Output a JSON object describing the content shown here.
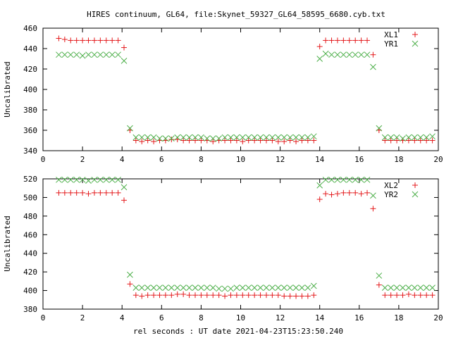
{
  "title": "HIRES continuum, GL64, file:Skynet_59327_GL64_58595_6680.cyb.txt",
  "xlabel": "rel seconds : UT date 2021-04-23T15:23:50.240",
  "colors": {
    "plus": "#e41a1c",
    "cross": "#4daf4a"
  },
  "chart_data": [
    {
      "type": "scatter",
      "ylabel": "Uncalibrated",
      "xlim": [
        0,
        20
      ],
      "ylim": [
        340,
        460
      ],
      "xticks": [
        0,
        2,
        4,
        6,
        8,
        10,
        12,
        14,
        16,
        18,
        20
      ],
      "yticks": [
        340,
        360,
        380,
        400,
        420,
        440,
        460
      ],
      "legend_position": "top-right",
      "series": [
        {
          "name": "XL1",
          "marker": "plus",
          "x": [
            0.8,
            1.1,
            1.4,
            1.7,
            2.0,
            2.3,
            2.6,
            2.9,
            3.2,
            3.5,
            3.8,
            4.1,
            4.4,
            4.7,
            5.0,
            5.3,
            5.6,
            5.9,
            6.2,
            6.5,
            6.8,
            7.1,
            7.4,
            7.7,
            8.0,
            8.3,
            8.6,
            8.9,
            9.2,
            9.5,
            9.8,
            10.1,
            10.4,
            10.7,
            11.0,
            11.3,
            11.6,
            11.9,
            12.2,
            12.5,
            12.8,
            13.1,
            13.4,
            13.7,
            14.0,
            14.3,
            14.6,
            14.9,
            15.2,
            15.5,
            15.8,
            16.1,
            16.4,
            16.7,
            17.0,
            17.3,
            17.6,
            17.9,
            18.2,
            18.5,
            18.8,
            19.1,
            19.4,
            19.7
          ],
          "y": [
            450,
            449,
            448,
            448,
            448,
            448,
            448,
            448,
            448,
            448,
            448,
            441,
            360,
            350,
            349,
            350,
            349,
            350,
            350,
            351,
            351,
            350,
            350,
            350,
            350,
            350,
            349,
            350,
            350,
            350,
            350,
            349,
            350,
            350,
            350,
            350,
            350,
            349,
            349,
            350,
            349,
            350,
            350,
            350,
            442,
            448,
            448,
            448,
            448,
            448,
            448,
            448,
            448,
            434,
            360,
            350,
            350,
            350,
            350,
            350,
            350,
            350,
            350,
            350
          ]
        },
        {
          "name": "YR1",
          "marker": "cross",
          "x": [
            0.8,
            1.1,
            1.4,
            1.7,
            2.0,
            2.3,
            2.6,
            2.9,
            3.2,
            3.5,
            3.8,
            4.1,
            4.4,
            4.7,
            5.0,
            5.3,
            5.6,
            5.9,
            6.2,
            6.5,
            6.8,
            7.1,
            7.4,
            7.7,
            8.0,
            8.3,
            8.6,
            8.9,
            9.2,
            9.5,
            9.8,
            10.1,
            10.4,
            10.7,
            11.0,
            11.3,
            11.6,
            11.9,
            12.2,
            12.5,
            12.8,
            13.1,
            13.4,
            13.7,
            14.0,
            14.3,
            14.6,
            14.9,
            15.2,
            15.5,
            15.8,
            16.1,
            16.4,
            16.7,
            17.0,
            17.3,
            17.6,
            17.9,
            18.2,
            18.5,
            18.8,
            19.1,
            19.4,
            19.7
          ],
          "y": [
            434,
            434,
            434,
            434,
            433,
            434,
            434,
            434,
            434,
            434,
            434,
            428,
            362,
            353,
            353,
            353,
            353,
            352,
            352,
            352,
            353,
            353,
            353,
            353,
            353,
            352,
            352,
            352,
            353,
            353,
            353,
            353,
            353,
            353,
            353,
            353,
            353,
            353,
            353,
            353,
            353,
            353,
            353,
            354,
            430,
            435,
            434,
            434,
            434,
            434,
            434,
            434,
            434,
            422,
            362,
            353,
            353,
            353,
            352,
            353,
            353,
            353,
            353,
            354
          ]
        }
      ]
    },
    {
      "type": "scatter",
      "ylabel": "Uncalibrated",
      "xlim": [
        0,
        20
      ],
      "ylim": [
        380,
        520
      ],
      "xticks": [
        0,
        2,
        4,
        6,
        8,
        10,
        12,
        14,
        16,
        18,
        20
      ],
      "yticks": [
        380,
        400,
        420,
        440,
        460,
        480,
        500,
        520
      ],
      "legend_position": "top-right",
      "series": [
        {
          "name": "XL2",
          "marker": "plus",
          "x": [
            0.8,
            1.1,
            1.4,
            1.7,
            2.0,
            2.3,
            2.6,
            2.9,
            3.2,
            3.5,
            3.8,
            4.1,
            4.4,
            4.7,
            5.0,
            5.3,
            5.6,
            5.9,
            6.2,
            6.5,
            6.8,
            7.1,
            7.4,
            7.7,
            8.0,
            8.3,
            8.6,
            8.9,
            9.2,
            9.5,
            9.8,
            10.1,
            10.4,
            10.7,
            11.0,
            11.3,
            11.6,
            11.9,
            12.2,
            12.5,
            12.8,
            13.1,
            13.4,
            13.7,
            14.0,
            14.3,
            14.6,
            14.9,
            15.2,
            15.5,
            15.8,
            16.1,
            16.4,
            16.7,
            17.0,
            17.3,
            17.6,
            17.9,
            18.2,
            18.5,
            18.8,
            19.1,
            19.4,
            19.7
          ],
          "y": [
            505,
            505,
            505,
            505,
            505,
            504,
            505,
            505,
            505,
            505,
            505,
            497,
            407,
            395,
            394,
            395,
            395,
            395,
            395,
            395,
            396,
            396,
            395,
            395,
            395,
            395,
            395,
            395,
            394,
            395,
            395,
            395,
            395,
            395,
            395,
            395,
            395,
            395,
            394,
            394,
            394,
            394,
            394,
            395,
            498,
            504,
            503,
            504,
            505,
            505,
            505,
            504,
            505,
            488,
            406,
            395,
            395,
            395,
            395,
            396,
            395,
            395,
            395,
            395
          ]
        },
        {
          "name": "YR2",
          "marker": "cross",
          "x": [
            0.8,
            1.1,
            1.4,
            1.7,
            2.0,
            2.3,
            2.6,
            2.9,
            3.2,
            3.5,
            3.8,
            4.1,
            4.4,
            4.7,
            5.0,
            5.3,
            5.6,
            5.9,
            6.2,
            6.5,
            6.8,
            7.1,
            7.4,
            7.7,
            8.0,
            8.3,
            8.6,
            8.9,
            9.2,
            9.5,
            9.8,
            10.1,
            10.4,
            10.7,
            11.0,
            11.3,
            11.6,
            11.9,
            12.2,
            12.5,
            12.8,
            13.1,
            13.4,
            13.7,
            14.0,
            14.3,
            14.6,
            14.9,
            15.2,
            15.5,
            15.8,
            16.1,
            16.4,
            16.7,
            17.0,
            17.3,
            17.6,
            17.9,
            18.2,
            18.5,
            18.8,
            19.1,
            19.4,
            19.7
          ],
          "y": [
            519,
            519,
            519,
            519,
            519,
            518,
            519,
            519,
            519,
            519,
            519,
            511,
            417,
            403,
            403,
            403,
            403,
            403,
            403,
            403,
            403,
            403,
            403,
            403,
            403,
            403,
            403,
            402,
            402,
            402,
            403,
            403,
            403,
            403,
            403,
            403,
            403,
            403,
            403,
            403,
            403,
            403,
            403,
            405,
            513,
            519,
            519,
            519,
            519,
            519,
            519,
            519,
            519,
            502,
            416,
            403,
            403,
            403,
            403,
            403,
            403,
            403,
            403,
            403
          ]
        }
      ]
    }
  ]
}
